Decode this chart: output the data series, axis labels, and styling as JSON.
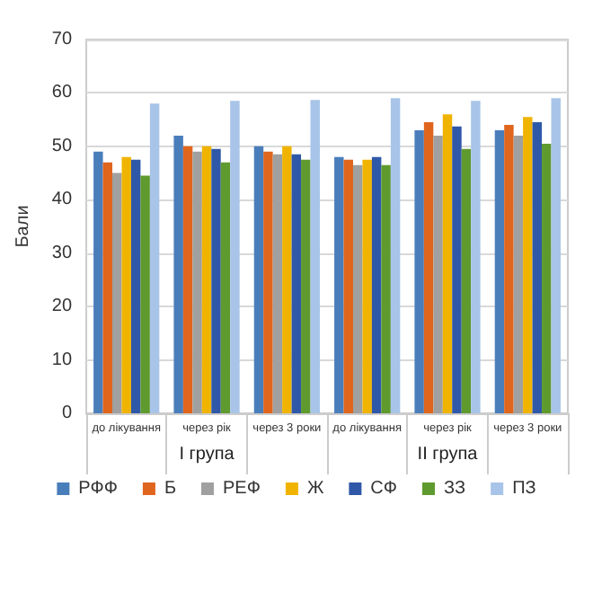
{
  "chart_data": {
    "type": "bar",
    "ylabel": "Бали",
    "categories": [
      "до лікування",
      "через рік",
      "через 3 роки",
      "до лікування",
      "через рік",
      "через 3 роки"
    ],
    "annotations": [
      "I група",
      "II група"
    ],
    "series": [
      {
        "name": "РФФ",
        "color": "#4a7ebb",
        "values": [
          49,
          52,
          50,
          48,
          53,
          53
        ]
      },
      {
        "name": "Б",
        "color": "#e0651d",
        "values": [
          47,
          50,
          49,
          47.5,
          54.5,
          54
        ]
      },
      {
        "name": "РЕФ",
        "color": "#a0a0a0",
        "values": [
          45,
          49,
          48.5,
          46.5,
          52,
          52
        ]
      },
      {
        "name": "Ж",
        "color": "#f0b400",
        "values": [
          48,
          50,
          50,
          47.5,
          56,
          55.5
        ]
      },
      {
        "name": "СФ",
        "color": "#2f58a8",
        "values": [
          47.5,
          49.5,
          48.5,
          48,
          53.7,
          54.5
        ]
      },
      {
        "name": "ЗЗ",
        "color": "#5f9a2e",
        "values": [
          44.5,
          47,
          47.5,
          46.5,
          49.5,
          50.5
        ]
      },
      {
        "name": "ПЗ",
        "color": "#a8c4e8",
        "values": [
          58,
          58.5,
          58.7,
          59,
          58.5,
          59
        ]
      }
    ],
    "ylim": [
      0,
      70
    ],
    "yticks": [
      0,
      10,
      20,
      30,
      40,
      50,
      60,
      70
    ],
    "grid": "y",
    "legend": "bottom"
  }
}
